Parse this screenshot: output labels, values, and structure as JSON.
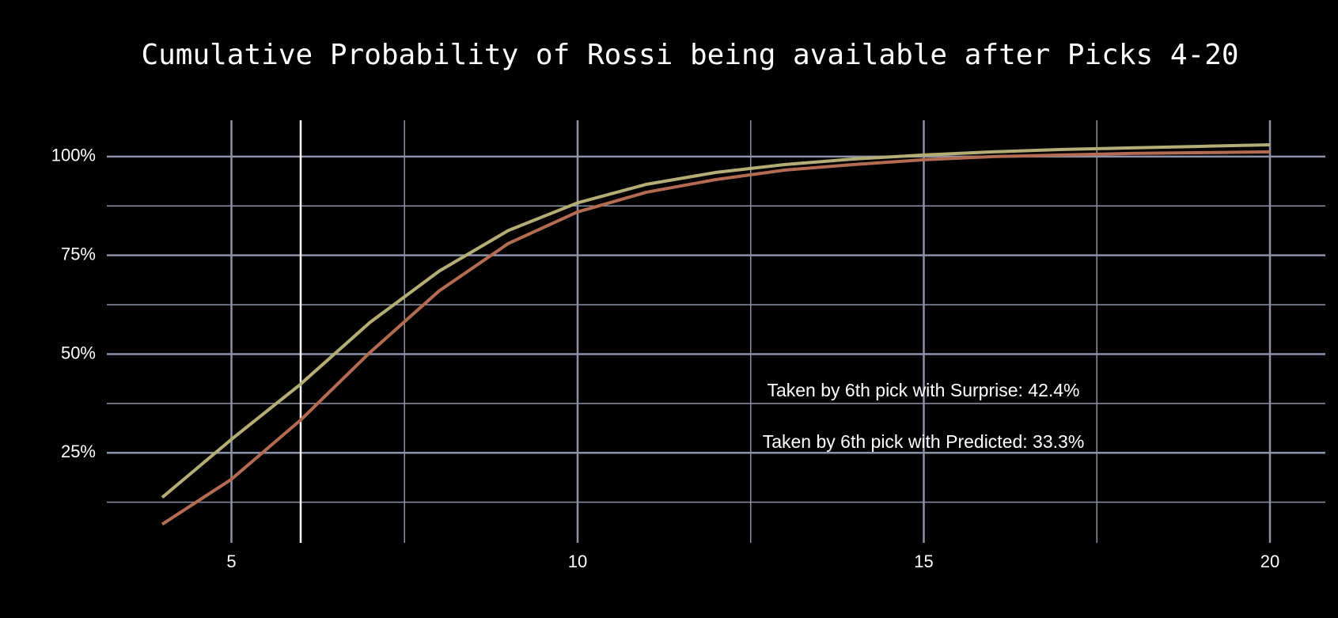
{
  "chart_data": {
    "type": "line",
    "title": "Cumulative Probability of Rossi being available after Picks 4-20",
    "x": [
      4,
      5,
      6,
      7,
      8,
      9,
      10,
      11,
      12,
      13,
      14,
      15,
      16,
      17,
      18,
      19,
      20
    ],
    "series": [
      {
        "name": "Surprise",
        "color": "#b4ae76",
        "values": [
          13.7,
          28.4,
          42.4,
          58,
          71,
          81.3,
          88.3,
          93,
          96,
          98,
          99.4,
          100.4,
          101.2,
          101.8,
          102.2,
          102.6,
          103
        ]
      },
      {
        "name": "Predicted",
        "color": "#b36b52",
        "values": [
          6.9,
          18.3,
          33.3,
          50.4,
          66,
          78,
          86,
          91,
          94.2,
          96.6,
          98,
          99.2,
          100,
          100.4,
          100.8,
          101,
          101.2
        ]
      }
    ],
    "xlim": [
      3.2,
      20.8
    ],
    "ylim": [
      2.2,
      109.2
    ],
    "xticks": [
      5,
      10,
      15,
      20
    ],
    "yticks": [
      {
        "value": 25,
        "label": "25%"
      },
      {
        "value": 50,
        "label": "50%"
      },
      {
        "value": 75,
        "label": "75%"
      },
      {
        "value": 100,
        "label": "100%"
      }
    ],
    "grid": true,
    "vline": 6,
    "annotations": [
      "Taken by 6th pick with Surprise: 42.4%",
      "Taken by 6th pick with Predicted: 33.3%"
    ]
  }
}
